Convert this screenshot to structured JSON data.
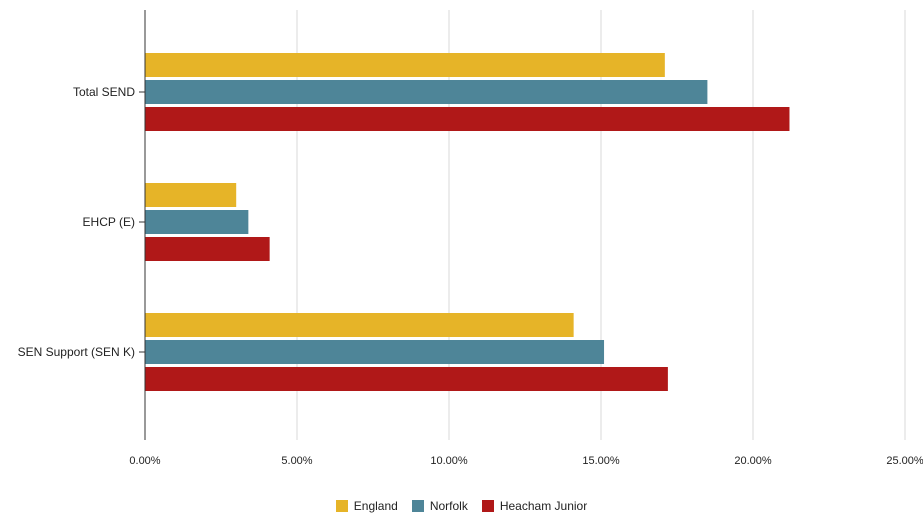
{
  "chart_data": {
    "type": "bar",
    "orientation": "horizontal",
    "title": "",
    "xlabel": "",
    "ylabel": "",
    "categories": [
      "Total SEND",
      "EHCP (E)",
      "SEN Support (SEN K)"
    ],
    "series": [
      {
        "name": "England",
        "color": "#E6B428",
        "values": [
          17.1,
          3.0,
          14.1
        ]
      },
      {
        "name": "Norfolk",
        "color": "#4E8598",
        "values": [
          18.5,
          3.4,
          15.1
        ]
      },
      {
        "name": "Heacham Junior",
        "color": "#B01818",
        "values": [
          21.2,
          4.1,
          17.2
        ]
      }
    ],
    "xlim": [
      0,
      25
    ],
    "x_ticks": [
      0,
      5,
      10,
      15,
      20,
      25
    ],
    "x_tick_labels": [
      "0.00%",
      "5.00%",
      "10.00%",
      "15.00%",
      "20.00%",
      "25.00%"
    ],
    "grid": true,
    "legend_position": "bottom"
  }
}
